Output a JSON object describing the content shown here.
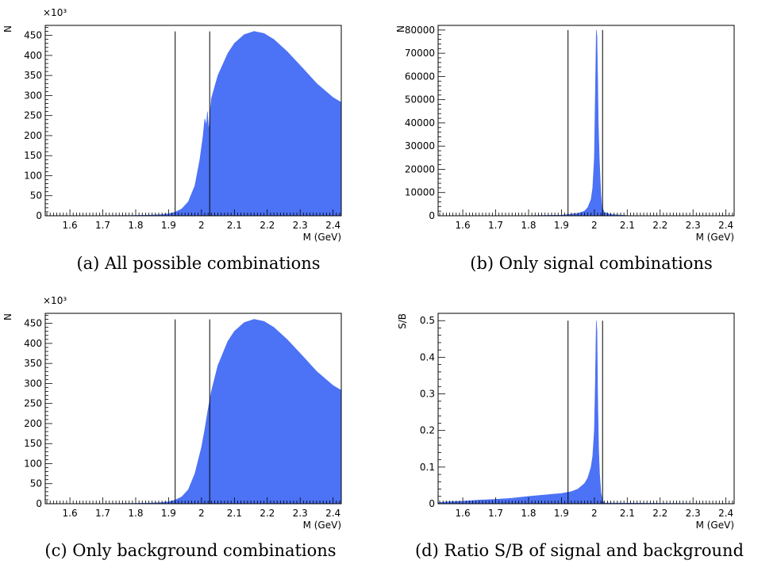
{
  "panels": {
    "a": {
      "caption": "(a) All possible combinations"
    },
    "b": {
      "caption": "(b) Only signal combinations"
    },
    "c": {
      "caption": "(c) Only background combinations"
    },
    "d": {
      "caption": "(d) Ratio S/B of signal and background"
    }
  },
  "colors": {
    "fill": "#4c72f5",
    "line": "#000000",
    "frame": "#000000"
  },
  "chart_data": [
    {
      "id": "a",
      "type": "area",
      "title": "",
      "xlabel": "M (GeV)",
      "ylabel": "N",
      "multiplier": "×10³",
      "xlim": [
        1.525,
        2.425
      ],
      "ylim": [
        0,
        475
      ],
      "xticks": [
        1.6,
        1.7,
        1.8,
        1.9,
        2.0,
        2.1,
        2.2,
        2.3,
        2.4
      ],
      "xticklabels": [
        "1.6",
        "1.7",
        "1.8",
        "1.9",
        "2",
        "2.1",
        "2.2",
        "2.3",
        "2.4"
      ],
      "yticks": [
        0,
        50,
        100,
        150,
        200,
        250,
        300,
        350,
        400,
        450
      ],
      "yticklabels": [
        "0",
        "50",
        "100",
        "150",
        "200",
        "250",
        "300",
        "350",
        "400",
        "450"
      ],
      "cut_lines": [
        1.92,
        2.025
      ],
      "cut_line_top": 460,
      "x": [
        1.525,
        1.7,
        1.8,
        1.85,
        1.88,
        1.9,
        1.92,
        1.94,
        1.96,
        1.98,
        1.995,
        2.005,
        2.01,
        2.015,
        2.018,
        2.022,
        2.025,
        2.03,
        2.05,
        2.08,
        2.1,
        2.13,
        2.16,
        2.19,
        2.22,
        2.26,
        2.3,
        2.35,
        2.4,
        2.425
      ],
      "values": [
        0,
        0.5,
        1,
        2,
        3,
        5,
        9,
        17,
        35,
        75,
        140,
        200,
        242,
        225,
        260,
        210,
        245,
        292,
        350,
        405,
        430,
        452,
        460,
        455,
        440,
        410,
        375,
        330,
        295,
        283
      ],
      "grid": false,
      "legend": "none"
    },
    {
      "id": "b",
      "type": "area",
      "title": "",
      "xlabel": "M (GeV)",
      "ylabel": "N",
      "multiplier": "",
      "xlim": [
        1.525,
        2.425
      ],
      "ylim": [
        0,
        82000
      ],
      "xticks": [
        1.6,
        1.7,
        1.8,
        1.9,
        2.0,
        2.1,
        2.2,
        2.3,
        2.4
      ],
      "xticklabels": [
        "1.6",
        "1.7",
        "1.8",
        "1.9",
        "2",
        "2.1",
        "2.2",
        "2.3",
        "2.4"
      ],
      "yticks": [
        0,
        10000,
        20000,
        30000,
        40000,
        50000,
        60000,
        70000,
        80000
      ],
      "yticklabels": [
        "0",
        "10000",
        "20000",
        "30000",
        "40000",
        "50000",
        "60000",
        "70000",
        "80000"
      ],
      "cut_lines": [
        1.92,
        2.025
      ],
      "cut_line_top": 80000,
      "x": [
        1.525,
        1.8,
        1.9,
        1.95,
        1.97,
        1.98,
        1.99,
        1.995,
        2.0,
        2.003,
        2.006,
        2.008,
        2.01,
        2.012,
        2.015,
        2.018,
        2.02,
        2.023,
        2.03,
        2.05,
        2.1,
        2.2,
        2.425
      ],
      "values": [
        0,
        50,
        300,
        1000,
        2000,
        3500,
        7000,
        12000,
        25000,
        52000,
        80000,
        77000,
        60000,
        40000,
        25000,
        15000,
        9000,
        4000,
        1500,
        600,
        100,
        30,
        0
      ],
      "grid": false,
      "legend": "none"
    },
    {
      "id": "c",
      "type": "area",
      "title": "",
      "xlabel": "M (GeV)",
      "ylabel": "N",
      "multiplier": "×10³",
      "xlim": [
        1.525,
        2.425
      ],
      "ylim": [
        0,
        475
      ],
      "xticks": [
        1.6,
        1.7,
        1.8,
        1.9,
        2.0,
        2.1,
        2.2,
        2.3,
        2.4
      ],
      "xticklabels": [
        "1.6",
        "1.7",
        "1.8",
        "1.9",
        "2",
        "2.1",
        "2.2",
        "2.3",
        "2.4"
      ],
      "yticks": [
        0,
        50,
        100,
        150,
        200,
        250,
        300,
        350,
        400,
        450
      ],
      "yticklabels": [
        "0",
        "50",
        "100",
        "150",
        "200",
        "250",
        "300",
        "350",
        "400",
        "450"
      ],
      "cut_lines": [
        1.92,
        2.025
      ],
      "cut_line_top": 460,
      "x": [
        1.525,
        1.7,
        1.8,
        1.85,
        1.88,
        1.9,
        1.92,
        1.94,
        1.96,
        1.98,
        2.0,
        2.01,
        2.02,
        2.03,
        2.05,
        2.08,
        2.1,
        2.13,
        2.16,
        2.19,
        2.22,
        2.26,
        2.3,
        2.35,
        2.4,
        2.425
      ],
      "values": [
        0,
        0.5,
        1,
        2,
        3,
        5,
        9,
        17,
        35,
        75,
        140,
        185,
        235,
        280,
        345,
        405,
        430,
        452,
        460,
        455,
        440,
        410,
        375,
        330,
        295,
        283
      ],
      "grid": false,
      "legend": "none"
    },
    {
      "id": "d",
      "type": "area",
      "title": "",
      "xlabel": "M (GeV)",
      "ylabel": "S/B",
      "multiplier": "",
      "xlim": [
        1.525,
        2.425
      ],
      "ylim": [
        0,
        0.52
      ],
      "xticks": [
        1.6,
        1.7,
        1.8,
        1.9,
        2.0,
        2.1,
        2.2,
        2.3,
        2.4
      ],
      "xticklabels": [
        "1.6",
        "1.7",
        "1.8",
        "1.9",
        "2",
        "2.1",
        "2.2",
        "2.3",
        "2.4"
      ],
      "yticks": [
        0,
        0.1,
        0.2,
        0.3,
        0.4,
        0.5
      ],
      "yticklabels": [
        "0",
        "0.1",
        "0.2",
        "0.3",
        "0.4",
        "0.5"
      ],
      "cut_lines": [
        1.92,
        2.025
      ],
      "cut_line_top": 0.5,
      "x": [
        1.525,
        1.55,
        1.6,
        1.65,
        1.7,
        1.75,
        1.8,
        1.85,
        1.9,
        1.93,
        1.95,
        1.97,
        1.98,
        1.99,
        1.995,
        2.0,
        2.003,
        2.006,
        2.008,
        2.01,
        2.013,
        2.016,
        2.02,
        2.025,
        2.03,
        2.425
      ],
      "values": [
        0.003,
        0.005,
        0.007,
        0.01,
        0.012,
        0.015,
        0.02,
        0.024,
        0.028,
        0.033,
        0.04,
        0.055,
        0.07,
        0.1,
        0.13,
        0.2,
        0.33,
        0.5,
        0.47,
        0.3,
        0.15,
        0.08,
        0.03,
        0.008,
        0.002,
        0
      ],
      "grid": false,
      "legend": "none"
    }
  ]
}
